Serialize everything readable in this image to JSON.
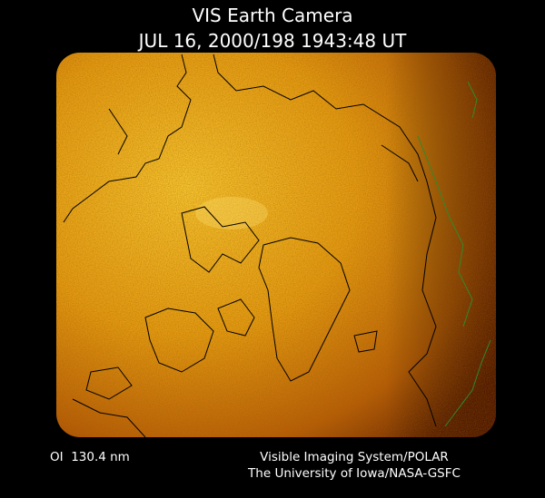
{
  "header": {
    "title": "VIS Earth Camera",
    "timestamp": "JUL 16, 2000/198 1943:48 UT"
  },
  "footer": {
    "filter": "OI  130.4 nm",
    "instrument": "Visible Imaging System/POLAR",
    "credit": "The University of Iowa/NASA-GSFC"
  }
}
